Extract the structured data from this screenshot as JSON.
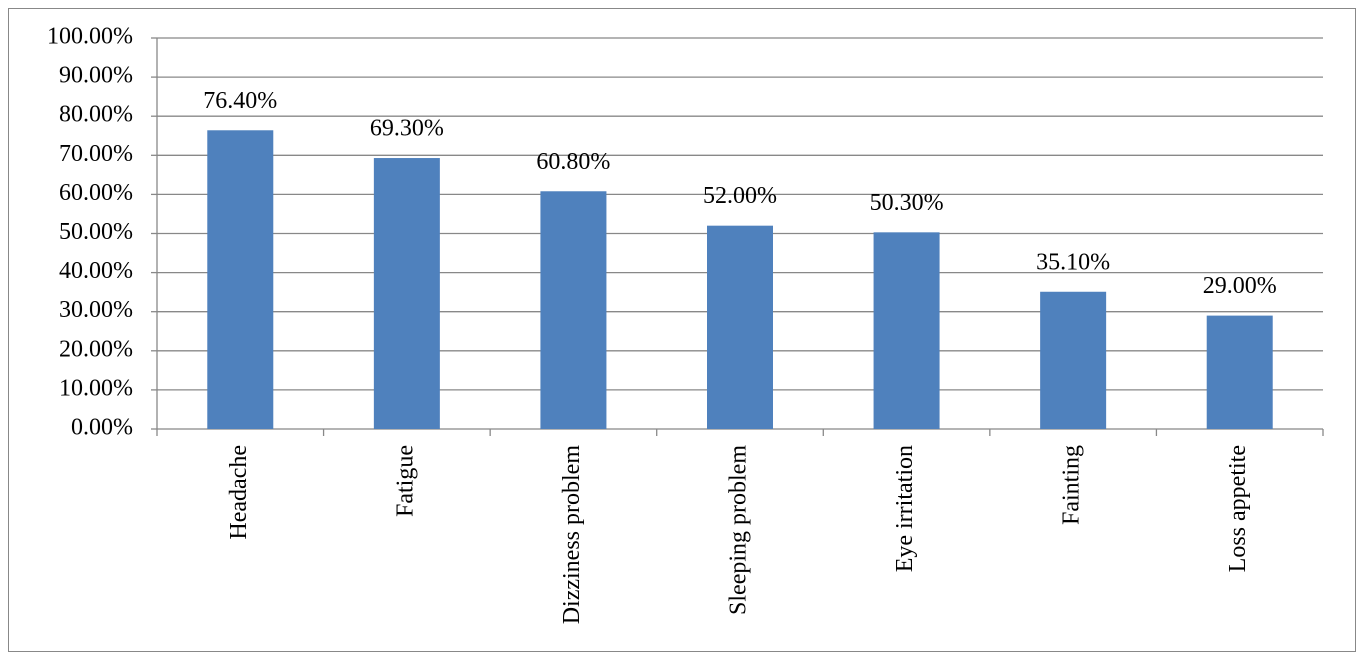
{
  "chart_data": {
    "type": "bar",
    "categories": [
      "Headache",
      "Fatigue",
      "Dizziness problem",
      "Sleeping problem",
      "Eye irritation",
      "Fainting",
      "Loss appetite"
    ],
    "values": [
      76.4,
      69.3,
      60.8,
      52.0,
      50.3,
      35.1,
      29.0
    ],
    "value_labels": [
      "76.40%",
      "69.30%",
      "60.80%",
      "52.00%",
      "50.30%",
      "35.10%",
      "29.00%"
    ],
    "color": "#4f81bd",
    "ylim": [
      0,
      100
    ],
    "yticks": [
      {
        "value": 0,
        "label": "0.00%"
      },
      {
        "value": 10,
        "label": "10.00%"
      },
      {
        "value": 20,
        "label": "20.00%"
      },
      {
        "value": 30,
        "label": "30.00%"
      },
      {
        "value": 40,
        "label": "40.00%"
      },
      {
        "value": 50,
        "label": "50.00%"
      },
      {
        "value": 60,
        "label": "60.00%"
      },
      {
        "value": 70,
        "label": "70.00%"
      },
      {
        "value": 80,
        "label": "80.00%"
      },
      {
        "value": 90,
        "label": "90.00%"
      },
      {
        "value": 100,
        "label": "100.00%"
      }
    ],
    "grid": true
  }
}
